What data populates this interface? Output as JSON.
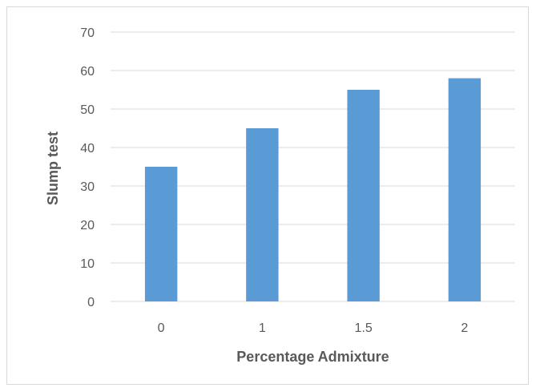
{
  "chart_data": {
    "type": "bar",
    "categories": [
      "0",
      "1",
      "1.5",
      "2"
    ],
    "values": [
      35,
      45,
      55,
      58
    ],
    "title": "",
    "xlabel": "Percentage Admixture",
    "ylabel": "Slump test",
    "ylim": [
      0,
      70
    ],
    "yticks": [
      0,
      10,
      20,
      30,
      40,
      50,
      60,
      70
    ],
    "grid": true,
    "legend": "none",
    "bar_color": "#5b9bd5"
  }
}
